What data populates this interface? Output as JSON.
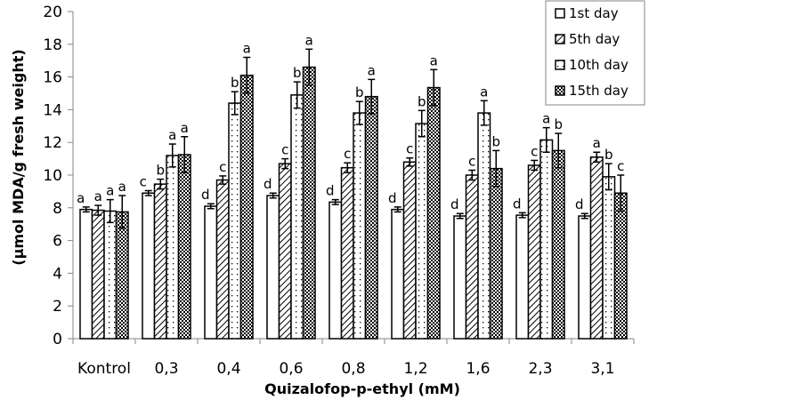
{
  "chart_data": {
    "type": "bar",
    "title": "",
    "xlabel": "Quizalofop-p-ethyl (mM)",
    "ylabel": "(µmol MDA/g fresh weight)",
    "ylim": [
      0,
      20
    ],
    "yticks": [
      0,
      2,
      4,
      6,
      8,
      10,
      12,
      14,
      16,
      18,
      20
    ],
    "grid": false,
    "legend_position": "top-right",
    "categories": [
      "Kontrol",
      "0,3",
      "0,4",
      "0,6",
      "0,8",
      "1,2",
      "1,6",
      "2,3",
      "3,1"
    ],
    "series": [
      {
        "name": "1st day",
        "pattern": "solid-white",
        "values": [
          7.9,
          8.9,
          8.1,
          8.75,
          8.35,
          7.9,
          7.5,
          7.55,
          7.5
        ],
        "errors": [
          0.15,
          0.15,
          0.15,
          0.15,
          0.15,
          0.15,
          0.15,
          0.15,
          0.15
        ],
        "labels": [
          "a",
          "c",
          "d",
          "d",
          "d",
          "d",
          "d",
          "d",
          "d"
        ]
      },
      {
        "name": "5th day",
        "pattern": "diagonal-hatch",
        "values": [
          7.85,
          9.45,
          9.7,
          10.7,
          10.45,
          10.8,
          10.0,
          10.6,
          11.1
        ],
        "errors": [
          0.3,
          0.3,
          0.25,
          0.3,
          0.3,
          0.25,
          0.3,
          0.3,
          0.3
        ],
        "labels": [
          "a",
          "b",
          "c",
          "c",
          "c",
          "c",
          "c",
          "c",
          "a"
        ]
      },
      {
        "name": "10th day",
        "pattern": "dotted",
        "values": [
          7.8,
          11.2,
          14.4,
          14.9,
          13.8,
          13.15,
          13.8,
          12.15,
          9.9
        ],
        "errors": [
          0.7,
          0.7,
          0.7,
          0.8,
          0.7,
          0.8,
          0.75,
          0.75,
          0.8
        ],
        "labels": [
          "a",
          "a",
          "b",
          "b",
          "b",
          "b",
          "a",
          "a",
          "b"
        ]
      },
      {
        "name": "15th day",
        "pattern": "checkered",
        "values": [
          7.75,
          11.25,
          16.1,
          16.6,
          14.8,
          15.35,
          10.4,
          11.5,
          8.9
        ],
        "errors": [
          1.0,
          1.1,
          1.1,
          1.1,
          1.05,
          1.1,
          1.1,
          1.05,
          1.1
        ],
        "labels": [
          "a",
          "a",
          "a",
          "a",
          "a",
          "a",
          "b",
          "b",
          "c"
        ]
      }
    ]
  }
}
